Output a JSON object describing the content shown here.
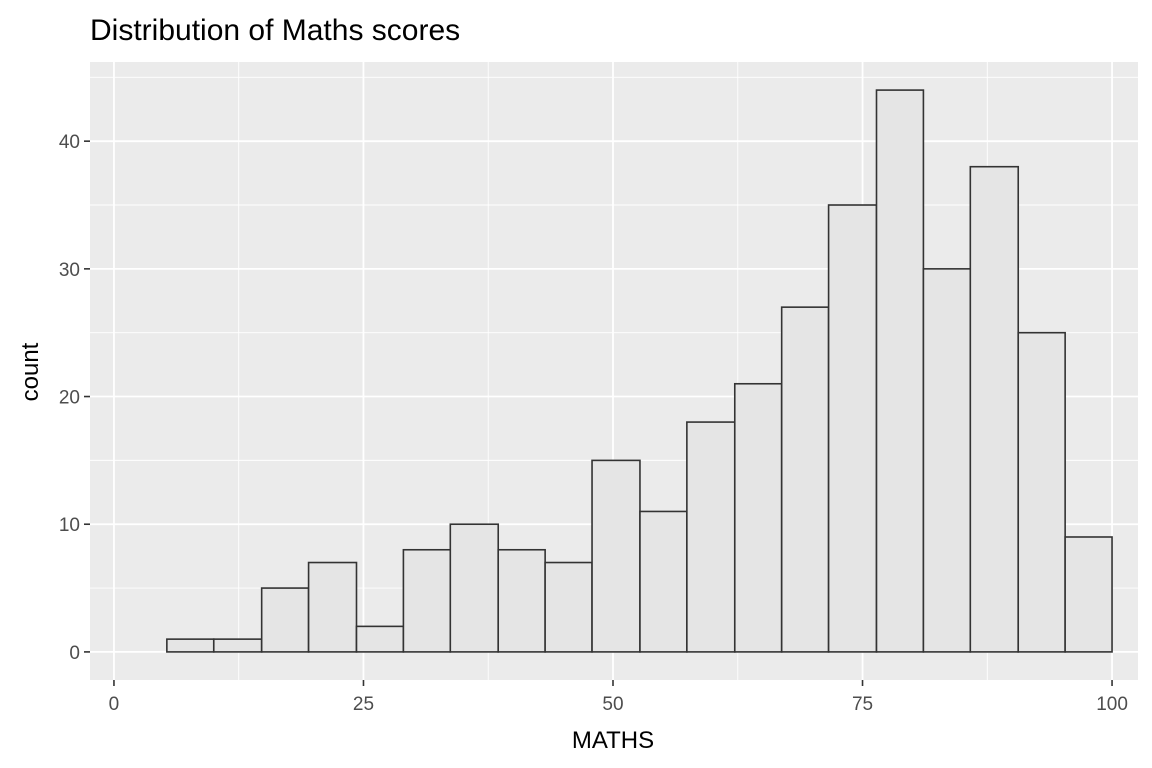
{
  "chart_data": {
    "type": "bar",
    "title": "Distribution of Maths scores",
    "xlabel": "MATHS",
    "ylabel": "count",
    "xlim": [
      -2.4,
      102.6
    ],
    "ylim": [
      -2.2,
      46.2
    ],
    "x_ticks": [
      0,
      25,
      50,
      75,
      100
    ],
    "x_tick_labels": [
      "0",
      "25",
      "50",
      "75",
      "100"
    ],
    "y_ticks": [
      0,
      10,
      20,
      30,
      40
    ],
    "y_tick_labels": [
      "0",
      "10",
      "20",
      "30",
      "40"
    ],
    "bins": [
      {
        "x0": 5.3,
        "x1": 10.0,
        "count": 1
      },
      {
        "x0": 10.0,
        "x1": 14.8,
        "count": 1
      },
      {
        "x0": 14.8,
        "x1": 19.5,
        "count": 5
      },
      {
        "x0": 19.5,
        "x1": 24.3,
        "count": 7
      },
      {
        "x0": 24.3,
        "x1": 29.0,
        "count": 2
      },
      {
        "x0": 29.0,
        "x1": 33.7,
        "count": 8
      },
      {
        "x0": 33.7,
        "x1": 38.5,
        "count": 10
      },
      {
        "x0": 38.5,
        "x1": 43.2,
        "count": 8
      },
      {
        "x0": 43.2,
        "x1": 47.9,
        "count": 7
      },
      {
        "x0": 47.9,
        "x1": 52.7,
        "count": 15
      },
      {
        "x0": 52.7,
        "x1": 57.4,
        "count": 11
      },
      {
        "x0": 57.4,
        "x1": 62.2,
        "count": 18
      },
      {
        "x0": 62.2,
        "x1": 66.9,
        "count": 21
      },
      {
        "x0": 66.9,
        "x1": 71.6,
        "count": 27
      },
      {
        "x0": 71.6,
        "x1": 76.4,
        "count": 35
      },
      {
        "x0": 76.4,
        "x1": 81.1,
        "count": 44
      },
      {
        "x0": 81.1,
        "x1": 85.8,
        "count": 30
      },
      {
        "x0": 85.8,
        "x1": 90.6,
        "count": 38
      },
      {
        "x0": 90.6,
        "x1": 95.3,
        "count": 25
      },
      {
        "x0": 95.3,
        "x1": 100.0,
        "count": 9
      }
    ],
    "grid": true,
    "legend": "none"
  },
  "colors": {
    "panel_background": "#ebebeb",
    "grid_line": "#ffffff",
    "bar_fill": "#e5e5e5",
    "bar_stroke": "#333333",
    "tick_color": "#333333"
  }
}
